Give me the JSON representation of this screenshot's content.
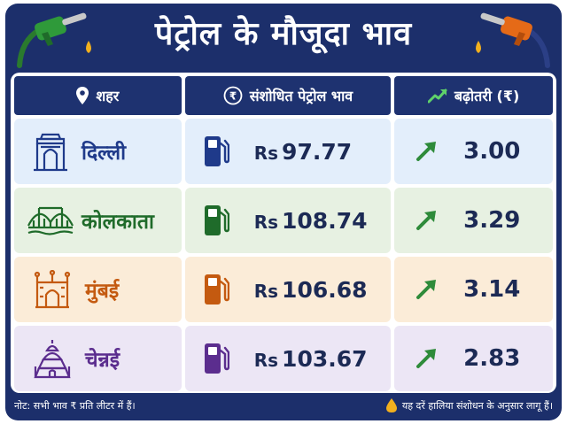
{
  "title": "पेट्रोल के मौजूदा भाव",
  "colors": {
    "navy": "#1c2f6b",
    "blue": "#1f3a8a",
    "green": "#1f6b2a",
    "orange": "#c45a10",
    "purple": "#5b2d8e",
    "arrow_green": "#2e8b3a",
    "drop_yellow": "#f2b01e"
  },
  "header": {
    "city_label": "शहर",
    "price_label": "संशोधित पेट्रोल भाव",
    "increase_label": "बढ़ोतरी (₹)",
    "city_icon": "location-pin-icon",
    "price_icon": "rupee-icon",
    "increase_icon": "trend-up-icon"
  },
  "rows": [
    {
      "city": "दिल्ली",
      "landmark_icon": "india-gate-icon",
      "currency": "Rs",
      "price": "97.77",
      "increase": "3.00",
      "bg": "#e3eefb",
      "accent": "#1f3a8a"
    },
    {
      "city": "कोलकाता",
      "landmark_icon": "howrah-bridge-icon",
      "currency": "Rs",
      "price": "108.74",
      "increase": "3.29",
      "bg": "#e7f1e2",
      "accent": "#1f6b2a"
    },
    {
      "city": "मुंबई",
      "landmark_icon": "gateway-of-india-icon",
      "currency": "Rs",
      "price": "106.68",
      "increase": "3.14",
      "bg": "#fbecd8",
      "accent": "#c45a10"
    },
    {
      "city": "चेन्नई",
      "landmark_icon": "temple-icon",
      "currency": "Rs",
      "price": "103.67",
      "increase": "2.83",
      "bg": "#ece6f5",
      "accent": "#5b2d8e"
    }
  ],
  "footer": {
    "note": "नोट: सभी भाव ₹ प्रति लीटर में हैं।",
    "right_note": "यह दरें हालिया संशोधन के अनुसार लागू हैं।"
  }
}
